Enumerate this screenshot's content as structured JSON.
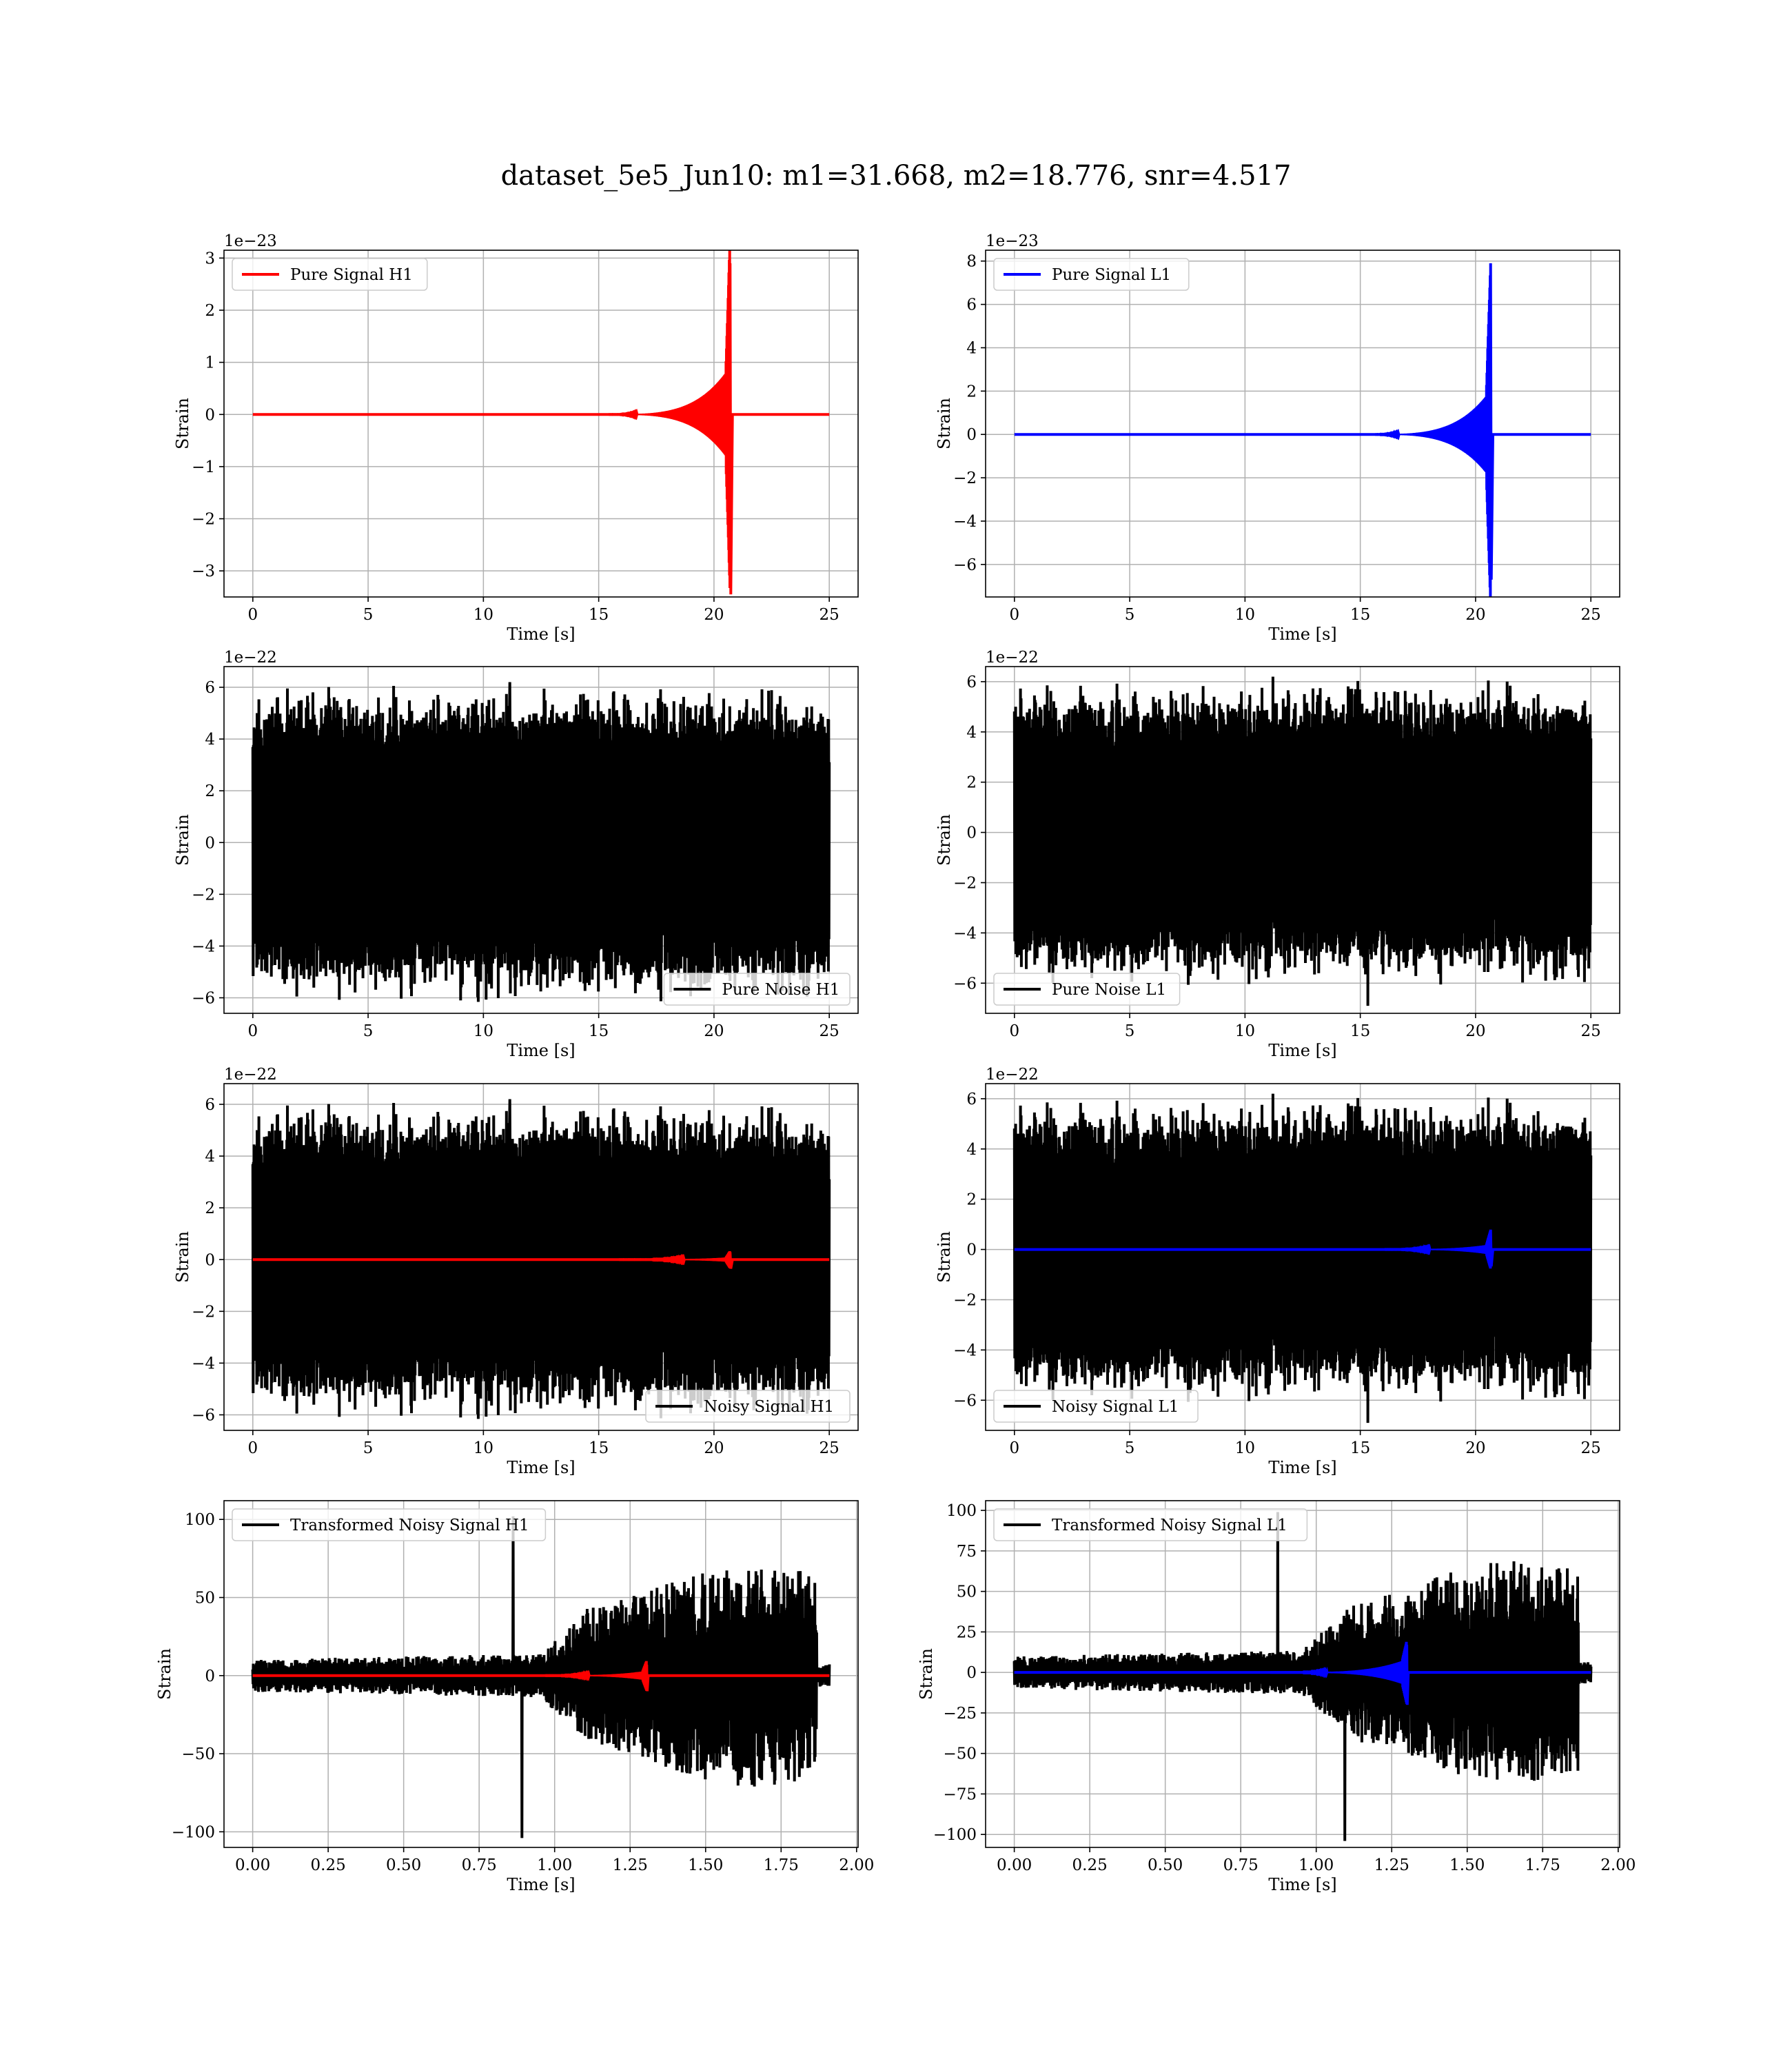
{
  "figure": {
    "title": "dataset_5e5_Jun10: m1=31.668, m2=18.776, snr=4.517"
  },
  "colors": {
    "h1_signal": "#ff0000",
    "l1_signal": "#0000ff",
    "noise": "#000000",
    "grid": "#b0b0b0",
    "axes": "#000000"
  },
  "chart_data": [
    {
      "id": "pure-signal-h1",
      "type": "line",
      "row": 0,
      "col": 0,
      "xlabel": "Time [s]",
      "ylabel": "Strain",
      "offset_text": "1e−23",
      "xlim": [
        -1.25,
        26.25
      ],
      "ylim": [
        -3.5,
        3.15
      ],
      "xticks": [
        0,
        5,
        10,
        15,
        20,
        25
      ],
      "yticks": [
        -3,
        -2,
        -1,
        0,
        1,
        2,
        3
      ],
      "xtick_labels": [
        "0",
        "5",
        "10",
        "15",
        "20",
        "25"
      ],
      "ytick_labels": [
        "−3",
        "−2",
        "−1",
        "0",
        "1",
        "2",
        "3"
      ],
      "legend": {
        "location": "upper left",
        "entries": [
          {
            "label": "Pure Signal H1",
            "color": "#ff0000"
          }
        ]
      },
      "series": [
        {
          "name": "Pure Signal H1",
          "color": "#ff0000",
          "kind": "chirp",
          "x_start": 0,
          "x_end": 25,
          "merger": 20.7,
          "ringdown_end": 20.8,
          "inspiral_start": 14.5,
          "peak_pos": 2.9,
          "peak_neg": -3.45,
          "inspiral_amp": 0.9
        }
      ]
    },
    {
      "id": "pure-signal-l1",
      "type": "line",
      "row": 0,
      "col": 1,
      "xlabel": "Time [s]",
      "ylabel": "Strain",
      "offset_text": "1e−23",
      "xlim": [
        -1.25,
        26.25
      ],
      "ylim": [
        -7.5,
        8.5
      ],
      "xticks": [
        0,
        5,
        10,
        15,
        20,
        25
      ],
      "yticks": [
        -6,
        -4,
        -2,
        0,
        2,
        4,
        6,
        8
      ],
      "xtick_labels": [
        "0",
        "5",
        "10",
        "15",
        "20",
        "25"
      ],
      "ytick_labels": [
        "−6",
        "−4",
        "−2",
        "0",
        "2",
        "4",
        "6",
        "8"
      ],
      "legend": {
        "location": "upper left",
        "entries": [
          {
            "label": "Pure Signal L1",
            "color": "#0000ff"
          }
        ]
      },
      "series": [
        {
          "name": "Pure Signal L1",
          "color": "#0000ff",
          "kind": "chirp",
          "x_start": 0,
          "x_end": 25,
          "merger": 20.65,
          "ringdown_end": 20.75,
          "inspiral_start": 14.5,
          "peak_pos": 7.9,
          "peak_neg": -6.7,
          "inspiral_amp": 2.0
        }
      ]
    },
    {
      "id": "pure-noise-h1",
      "type": "line",
      "row": 1,
      "col": 0,
      "xlabel": "Time [s]",
      "ylabel": "Strain",
      "offset_text": "1e−22",
      "xlim": [
        -1.25,
        26.25
      ],
      "ylim": [
        -6.6,
        6.8
      ],
      "xticks": [
        0,
        5,
        10,
        15,
        20,
        25
      ],
      "yticks": [
        -6,
        -4,
        -2,
        0,
        2,
        4,
        6
      ],
      "xtick_labels": [
        "0",
        "5",
        "10",
        "15",
        "20",
        "25"
      ],
      "ytick_labels": [
        "−6",
        "−4",
        "−2",
        "0",
        "2",
        "4",
        "6"
      ],
      "legend": {
        "location": "lower right",
        "entries": [
          {
            "label": "Pure Noise H1",
            "color": "#000000"
          }
        ]
      },
      "series": [
        {
          "name": "Pure Noise H1",
          "color": "#000000",
          "kind": "noise",
          "x_start": 0,
          "x_end": 25,
          "seed": 11,
          "max": 6.2,
          "min": -6.1
        }
      ]
    },
    {
      "id": "pure-noise-l1",
      "type": "line",
      "row": 1,
      "col": 1,
      "xlabel": "Time [s]",
      "ylabel": "Strain",
      "offset_text": "1e−22",
      "xlim": [
        -1.25,
        26.25
      ],
      "ylim": [
        -7.2,
        6.6
      ],
      "xticks": [
        0,
        5,
        10,
        15,
        20,
        25
      ],
      "yticks": [
        -6,
        -4,
        -2,
        0,
        2,
        4,
        6
      ],
      "xtick_labels": [
        "0",
        "5",
        "10",
        "15",
        "20",
        "25"
      ],
      "ytick_labels": [
        "−6",
        "−4",
        "−2",
        "0",
        "2",
        "4",
        "6"
      ],
      "legend": {
        "location": "lower left",
        "entries": [
          {
            "label": "Pure Noise L1",
            "color": "#000000"
          }
        ]
      },
      "series": [
        {
          "name": "Pure Noise L1",
          "color": "#000000",
          "kind": "noise",
          "x_start": 0,
          "x_end": 25,
          "seed": 29,
          "max": 6.2,
          "min": -6.9
        }
      ]
    },
    {
      "id": "noisy-signal-h1",
      "type": "line",
      "row": 2,
      "col": 0,
      "xlabel": "Time [s]",
      "ylabel": "Strain",
      "offset_text": "1e−22",
      "xlim": [
        -1.25,
        26.25
      ],
      "ylim": [
        -6.6,
        6.8
      ],
      "xticks": [
        0,
        5,
        10,
        15,
        20,
        25
      ],
      "yticks": [
        -6,
        -4,
        -2,
        0,
        2,
        4,
        6
      ],
      "xtick_labels": [
        "0",
        "5",
        "10",
        "15",
        "20",
        "25"
      ],
      "ytick_labels": [
        "−6",
        "−4",
        "−2",
        "0",
        "2",
        "4",
        "6"
      ],
      "legend": {
        "location": "lower right",
        "entries": [
          {
            "label": "Noisy Signal H1",
            "color": "#000000"
          }
        ]
      },
      "series": [
        {
          "name": "Noisy Signal H1",
          "color": "#000000",
          "kind": "noise",
          "x_start": 0,
          "x_end": 25,
          "seed": 11,
          "max": 6.2,
          "min": -6.1
        },
        {
          "color": "#ff0000",
          "kind": "chirp",
          "x_start": 0,
          "x_end": 25,
          "merger": 20.7,
          "ringdown_end": 20.8,
          "inspiral_start": 14.5,
          "peak_pos": 0.29,
          "peak_neg": -0.35,
          "inspiral_amp": 0.09
        }
      ]
    },
    {
      "id": "noisy-signal-l1",
      "type": "line",
      "row": 2,
      "col": 1,
      "xlabel": "Time [s]",
      "ylabel": "Strain",
      "offset_text": "1e−22",
      "xlim": [
        -1.25,
        26.25
      ],
      "ylim": [
        -7.2,
        6.6
      ],
      "xticks": [
        0,
        5,
        10,
        15,
        20,
        25
      ],
      "yticks": [
        -6,
        -4,
        -2,
        0,
        2,
        4,
        6
      ],
      "xtick_labels": [
        "0",
        "5",
        "10",
        "15",
        "20",
        "25"
      ],
      "ytick_labels": [
        "−6",
        "−4",
        "−2",
        "0",
        "2",
        "4",
        "6"
      ],
      "legend": {
        "location": "lower left",
        "entries": [
          {
            "label": "Noisy Signal L1",
            "color": "#000000"
          }
        ]
      },
      "series": [
        {
          "name": "Noisy Signal L1",
          "color": "#000000",
          "kind": "noise",
          "x_start": 0,
          "x_end": 25,
          "seed": 29,
          "max": 6.2,
          "min": -6.9
        },
        {
          "color": "#0000ff",
          "kind": "chirp",
          "x_start": 0,
          "x_end": 25,
          "merger": 20.65,
          "ringdown_end": 20.75,
          "inspiral_start": 14.5,
          "peak_pos": 0.79,
          "peak_neg": -0.67,
          "inspiral_amp": 0.2
        }
      ]
    },
    {
      "id": "transformed-noisy-signal-h1",
      "type": "line",
      "row": 3,
      "col": 0,
      "xlabel": "Time [s]",
      "ylabel": "Strain",
      "offset_text": "",
      "xlim": [
        -0.095,
        2.005
      ],
      "ylim": [
        -110,
        112
      ],
      "xticks": [
        0,
        0.25,
        0.5,
        0.75,
        1.0,
        1.25,
        1.5,
        1.75,
        2.0
      ],
      "yticks": [
        -100,
        -50,
        0,
        50,
        100
      ],
      "xtick_labels": [
        "0.00",
        "0.25",
        "0.50",
        "0.75",
        "1.00",
        "1.25",
        "1.50",
        "1.75",
        "2.00"
      ],
      "ytick_labels": [
        "−100",
        "−50",
        "0",
        "50",
        "100"
      ],
      "legend": {
        "location": "upper left",
        "entries": [
          {
            "label": "Transformed Noisy Signal H1",
            "color": "#000000"
          }
        ]
      },
      "series": [
        {
          "name": "Transformed Noisy Signal H1",
          "color": "#000000",
          "kind": "transformed",
          "x_start": 0,
          "x_end": 1.91,
          "seed": 47,
          "max": 102,
          "min": -104
        },
        {
          "color": "#ff0000",
          "kind": "chirp",
          "x_start": 0,
          "x_end": 1.91,
          "merger": 1.305,
          "ringdown_end": 1.31,
          "inspiral_start": 0.85,
          "peak_pos": 7,
          "peak_neg": -10,
          "inspiral_amp": 3
        }
      ]
    },
    {
      "id": "transformed-noisy-signal-l1",
      "type": "line",
      "row": 3,
      "col": 1,
      "xlabel": "Time [s]",
      "ylabel": "Strain",
      "offset_text": "",
      "xlim": [
        -0.095,
        2.005
      ],
      "ylim": [
        -108,
        106
      ],
      "xticks": [
        0,
        0.25,
        0.5,
        0.75,
        1.0,
        1.25,
        1.5,
        1.75,
        2.0
      ],
      "yticks": [
        -100,
        -75,
        -50,
        -25,
        0,
        25,
        50,
        75,
        100
      ],
      "xtick_labels": [
        "0.00",
        "0.25",
        "0.50",
        "0.75",
        "1.00",
        "1.25",
        "1.50",
        "1.75",
        "2.00"
      ],
      "ytick_labels": [
        "−100",
        "−75",
        "−50",
        "−25",
        "0",
        "25",
        "50",
        "75",
        "100"
      ],
      "legend": {
        "location": "upper left",
        "entries": [
          {
            "label": "Transformed Noisy Signal L1",
            "color": "#000000"
          }
        ]
      },
      "series": [
        {
          "name": "Transformed Noisy Signal L1",
          "color": "#000000",
          "kind": "transformed",
          "x_start": 0,
          "x_end": 1.91,
          "seed": 83,
          "max": 99,
          "min": -104
        },
        {
          "color": "#0000ff",
          "kind": "chirp",
          "x_start": 0,
          "x_end": 1.91,
          "merger": 1.3,
          "ringdown_end": 1.305,
          "inspiral_start": 0.8,
          "peak_pos": 17,
          "peak_neg": -20,
          "inspiral_amp": 8
        }
      ]
    }
  ]
}
